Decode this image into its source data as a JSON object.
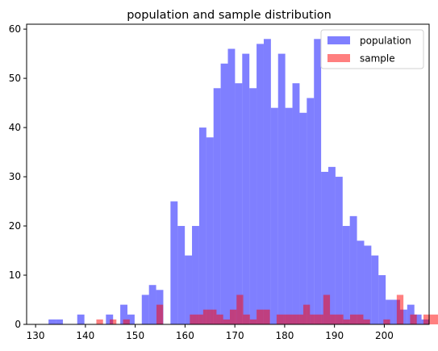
{
  "chart_data": {
    "type": "bar",
    "title": "population and sample distribution",
    "xlabel": "",
    "ylabel": "",
    "xlim": [
      128.2,
      209.0
    ],
    "ylim": [
      0,
      61
    ],
    "xticks": [
      130,
      140,
      150,
      160,
      170,
      180,
      190,
      200
    ],
    "yticks": [
      0,
      10,
      20,
      30,
      40,
      50,
      60
    ],
    "grid": false,
    "legend_position": "top-right",
    "series": [
      {
        "name": "population",
        "color": "#0000ff",
        "alpha": 0.5,
        "bin_start": 132.6,
        "bin_width": 1.44,
        "counts": [
          1,
          1,
          0,
          0,
          2,
          0,
          0,
          0,
          2,
          0,
          4,
          2,
          0,
          6,
          8,
          7,
          0,
          25,
          20,
          14,
          20,
          40,
          38,
          48,
          53,
          56,
          49,
          55,
          48,
          57,
          58,
          44,
          55,
          44,
          49,
          43,
          46,
          58,
          31,
          32,
          30,
          20,
          22,
          17,
          16,
          14,
          10,
          5,
          5,
          3,
          4,
          2,
          1,
          0,
          0,
          1,
          0,
          0,
          0,
          1
        ]
      },
      {
        "name": "sample",
        "color": "#ff0000",
        "alpha": 0.5,
        "bin_start": 142.2,
        "bin_width": 1.34,
        "counts": [
          1,
          0,
          1,
          0,
          1,
          0,
          0,
          0,
          0,
          4,
          0,
          0,
          0,
          0,
          2,
          2,
          3,
          3,
          2,
          1,
          3,
          6,
          2,
          1,
          3,
          3,
          0,
          2,
          2,
          2,
          2,
          4,
          2,
          2,
          6,
          2,
          2,
          1,
          2,
          2,
          1,
          0,
          0,
          1,
          0,
          6,
          0,
          2,
          0,
          2,
          2,
          2,
          2,
          1,
          0,
          1,
          0,
          0,
          0,
          2,
          0
        ]
      }
    ]
  }
}
